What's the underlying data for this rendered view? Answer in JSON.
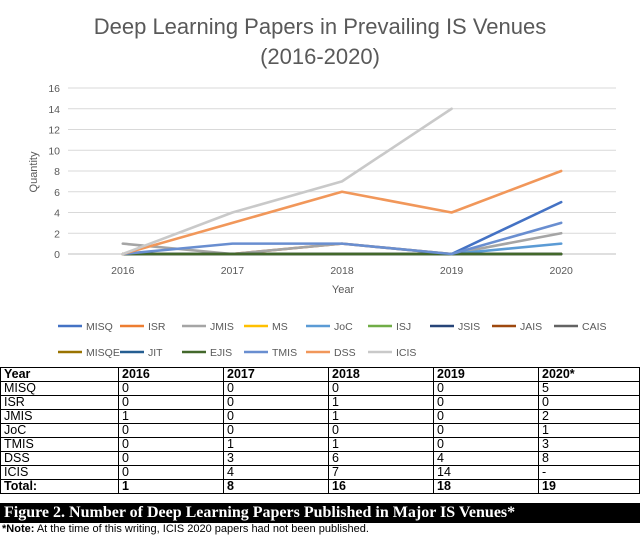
{
  "chart_data": {
    "type": "line",
    "title_line1": "Deep Learning Papers in Prevailing IS Venues",
    "title_line2": "(2016-2020)",
    "xlabel": "Year",
    "ylabel": "Quantity",
    "categories": [
      "2016",
      "2017",
      "2018",
      "2019",
      "2020"
    ],
    "ylim": [
      0,
      16
    ],
    "yticks": [
      0,
      2,
      4,
      6,
      8,
      10,
      12,
      14,
      16
    ],
    "grid": true,
    "legend_position": "bottom",
    "series": [
      {
        "name": "MISQ",
        "color": "#4472C4",
        "values": [
          0,
          0,
          0,
          0,
          5
        ]
      },
      {
        "name": "ISR",
        "color": "#ED7D31",
        "values": [
          0,
          0,
          1,
          0,
          0
        ]
      },
      {
        "name": "JMIS",
        "color": "#A5A5A5",
        "values": [
          1,
          0,
          1,
          0,
          2
        ]
      },
      {
        "name": "MS",
        "color": "#FFC000",
        "values": [
          0,
          0,
          0,
          0,
          0
        ]
      },
      {
        "name": "JoC",
        "color": "#5B9BD5",
        "values": [
          0,
          0,
          0,
          0,
          1
        ]
      },
      {
        "name": "ISJ",
        "color": "#70AD47",
        "values": [
          0,
          0,
          0,
          0,
          0
        ]
      },
      {
        "name": "JSIS",
        "color": "#264478",
        "values": [
          0,
          0,
          0,
          0,
          0
        ]
      },
      {
        "name": "JAIS",
        "color": "#9E480E",
        "values": [
          0,
          0,
          0,
          0,
          0
        ]
      },
      {
        "name": "CAIS",
        "color": "#636363",
        "values": [
          0,
          0,
          0,
          0,
          0
        ]
      },
      {
        "name": "MISQE",
        "color": "#997300",
        "values": [
          0,
          0,
          0,
          0,
          0
        ]
      },
      {
        "name": "JIT",
        "color": "#255E91",
        "values": [
          0,
          0,
          0,
          0,
          0
        ]
      },
      {
        "name": "EJIS",
        "color": "#43682B",
        "values": [
          0,
          0,
          0,
          0,
          0
        ]
      },
      {
        "name": "TMIS",
        "color": "#698ED0",
        "values": [
          0,
          1,
          1,
          0,
          3
        ]
      },
      {
        "name": "DSS",
        "color": "#F1975A",
        "values": [
          0,
          3,
          6,
          4,
          8
        ]
      },
      {
        "name": "ICIS",
        "color": "#C9C9C9",
        "values": [
          0,
          4,
          7,
          14,
          null
        ]
      }
    ]
  },
  "table": {
    "header": [
      "Year",
      "2016",
      "2017",
      "2018",
      "2019",
      "2020*"
    ],
    "rows": [
      [
        "MISQ",
        "0",
        "0",
        "0",
        "0",
        "5"
      ],
      [
        "ISR",
        "0",
        "0",
        "1",
        "0",
        "0"
      ],
      [
        "JMIS",
        "1",
        "0",
        "1",
        "0",
        "2"
      ],
      [
        "JoC",
        "0",
        "0",
        "0",
        "0",
        "1"
      ],
      [
        "TMIS",
        "0",
        "1",
        "1",
        "0",
        "3"
      ],
      [
        "DSS",
        "0",
        "3",
        "6",
        "4",
        "8"
      ],
      [
        "ICIS",
        "0",
        "4",
        "7",
        "14",
        "-"
      ]
    ],
    "total": [
      "Total:",
      "1",
      "8",
      "16",
      "18",
      "19"
    ]
  },
  "caption": "Figure 2. Number of Deep Learning Papers Published in Major IS Venues*",
  "note": {
    "label": "*Note:",
    "text": " At the time of this writing, ICIS 2020 papers had not been published."
  }
}
